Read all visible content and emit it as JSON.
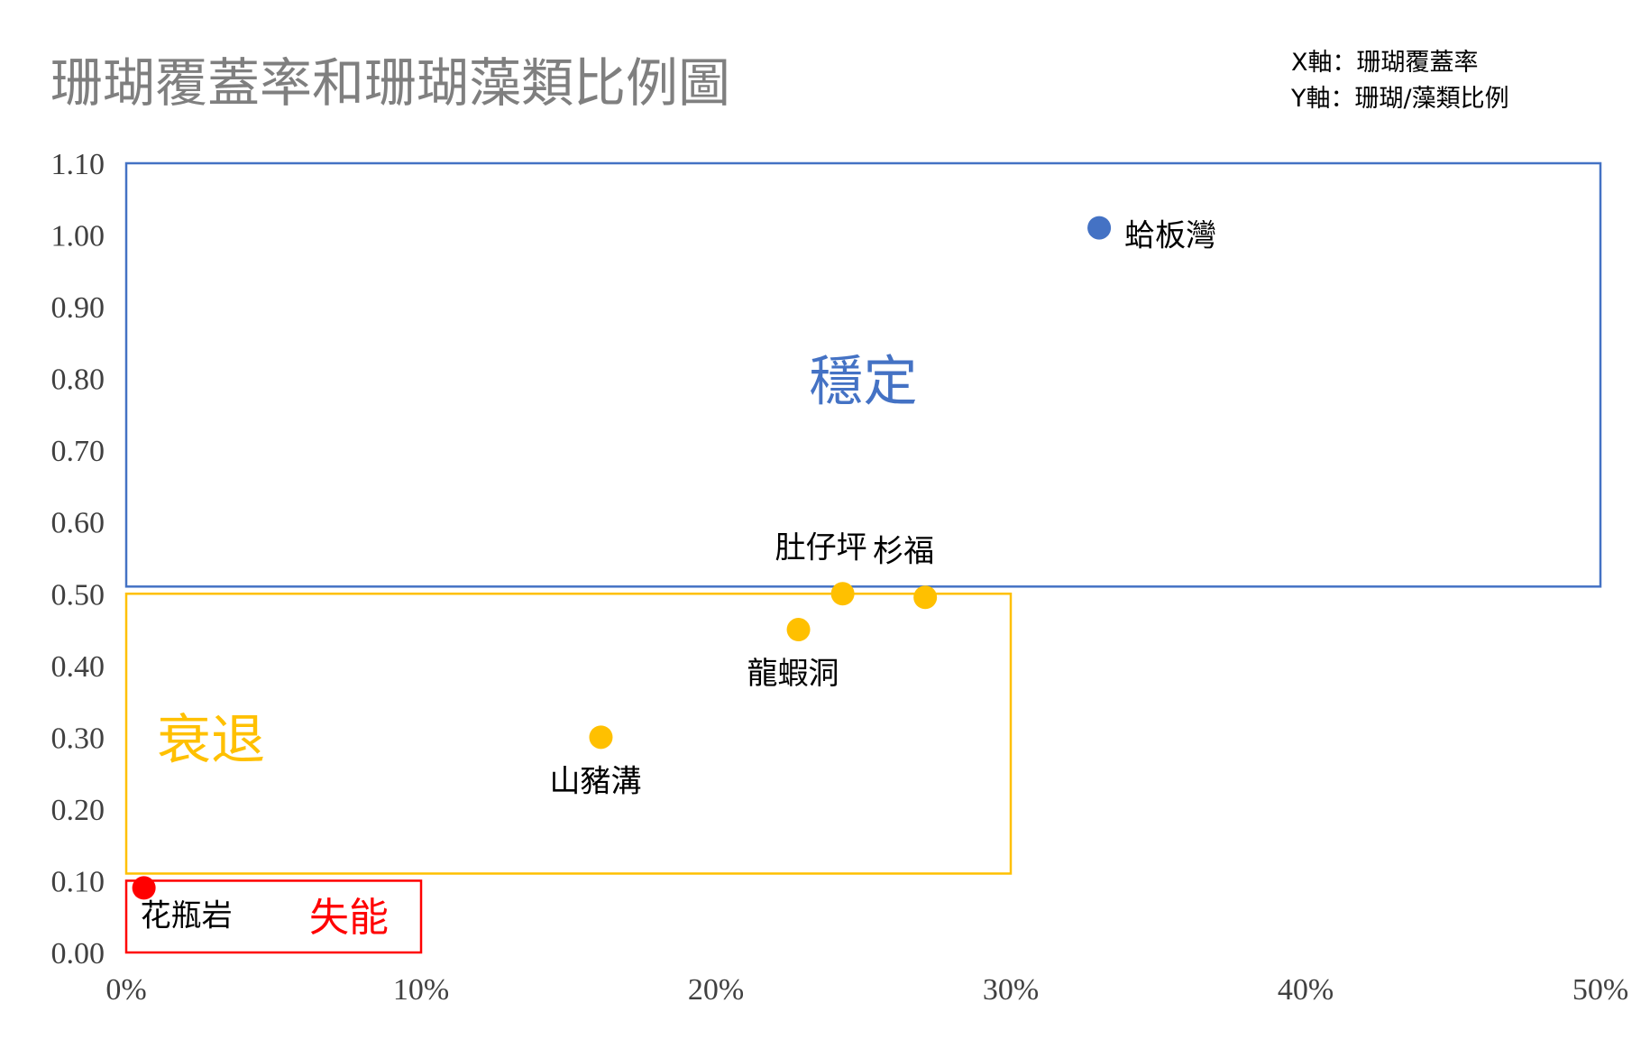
{
  "chart_data": {
    "type": "scatter",
    "title": "珊瑚覆蓋率和珊瑚藻類比例圖",
    "axis_legend": [
      "X軸：珊瑚覆蓋率",
      "Y軸：珊瑚/藻類比例"
    ],
    "xlim": [
      0,
      0.5
    ],
    "ylim": [
      0,
      1.1
    ],
    "x_ticks": [
      0,
      0.1,
      0.2,
      0.3,
      0.4,
      0.5
    ],
    "x_tick_labels": [
      "0%",
      "10%",
      "20%",
      "30%",
      "40%",
      "50%"
    ],
    "y_ticks": [
      0,
      0.1,
      0.2,
      0.3,
      0.4,
      0.5,
      0.6,
      0.7,
      0.8,
      0.9,
      1.0,
      1.1
    ],
    "y_tick_labels": [
      "0.00",
      "0.10",
      "0.20",
      "0.30",
      "0.40",
      "0.50",
      "0.60",
      "0.70",
      "0.80",
      "0.90",
      "1.00",
      "1.10"
    ],
    "grid": false,
    "points": [
      {
        "label": "蛤板灣",
        "x": 0.33,
        "y": 1.01,
        "color": "#4472C4",
        "label_side": "right"
      },
      {
        "label": "肚仔坪",
        "x": 0.243,
        "y": 0.5,
        "color": "#FFC000",
        "label_side": "above"
      },
      {
        "label": "杉福",
        "x": 0.271,
        "y": 0.495,
        "color": "#FFC000",
        "label_side": "above"
      },
      {
        "label": "龍蝦洞",
        "x": 0.228,
        "y": 0.45,
        "color": "#FFC000",
        "label_side": "below"
      },
      {
        "label": "山豬溝",
        "x": 0.161,
        "y": 0.3,
        "color": "#FFC000",
        "label_side": "below"
      },
      {
        "label": "花瓶岩",
        "x": 0.006,
        "y": 0.09,
        "color": "#FF0000",
        "label_side": "below-right"
      }
    ],
    "regions": [
      {
        "label": "穩定",
        "x_range": [
          0.0,
          0.5
        ],
        "y_range": [
          0.51,
          1.1
        ],
        "color": "#4472C4"
      },
      {
        "label": "衰退",
        "x_range": [
          0.0,
          0.3
        ],
        "y_range": [
          0.11,
          0.5
        ],
        "color": "#FFC000"
      },
      {
        "label": "失能",
        "x_range": [
          0.0,
          0.1
        ],
        "y_range": [
          0.0,
          0.1
        ],
        "color": "#FF0000"
      }
    ]
  }
}
